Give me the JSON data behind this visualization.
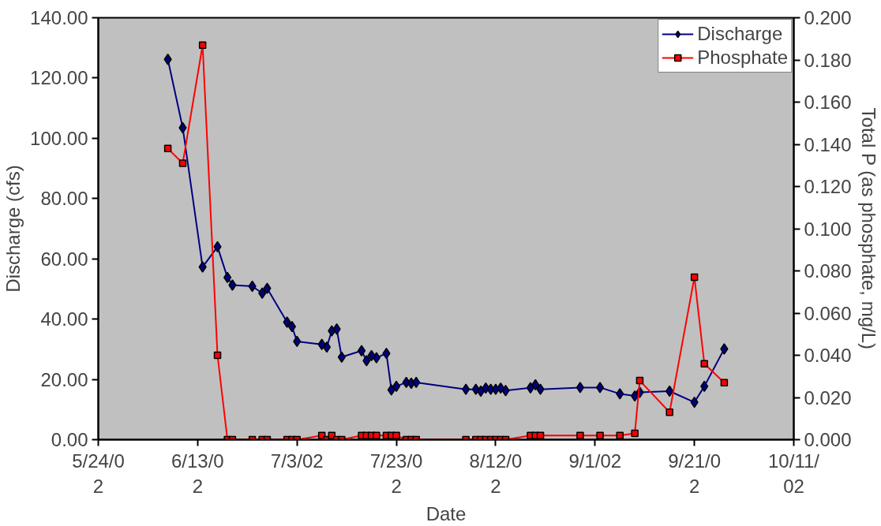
{
  "chart_data": {
    "type": "line",
    "xlabel": "Date",
    "ylabel": "Discharge (cfs)",
    "y2label": "Total P (as phosphate, mg/L)",
    "xlim": [
      "2002-05-24",
      "2002-10-11"
    ],
    "xticks": [
      {
        "value": "2002-05-24",
        "label": "5/24/02"
      },
      {
        "value": "2002-06-13",
        "label": "6/13/02"
      },
      {
        "value": "2002-07-03",
        "label": "7/3/02"
      },
      {
        "value": "2002-07-23",
        "label": "7/23/02"
      },
      {
        "value": "2002-08-12",
        "label": "8/12/02"
      },
      {
        "value": "2002-09-01",
        "label": "9/1/02"
      },
      {
        "value": "2002-09-21",
        "label": "9/21/02"
      },
      {
        "value": "2002-10-11",
        "label": "10/11/02"
      }
    ],
    "ylim": [
      0,
      140
    ],
    "yticks": [
      {
        "value": 0,
        "label": "0.00"
      },
      {
        "value": 20,
        "label": "20.00"
      },
      {
        "value": 40,
        "label": "40.00"
      },
      {
        "value": 60,
        "label": "60.00"
      },
      {
        "value": 80,
        "label": "80.00"
      },
      {
        "value": 100,
        "label": "100.00"
      },
      {
        "value": 120,
        "label": "120.00"
      },
      {
        "value": 140,
        "label": "140.00"
      }
    ],
    "y2lim": [
      0,
      0.2
    ],
    "y2ticks": [
      {
        "value": 0,
        "label": "0.000"
      },
      {
        "value": 0.02,
        "label": "0.020"
      },
      {
        "value": 0.04,
        "label": "0.040"
      },
      {
        "value": 0.06,
        "label": "0.060"
      },
      {
        "value": 0.08,
        "label": "0.080"
      },
      {
        "value": 0.1,
        "label": "0.100"
      },
      {
        "value": 0.12,
        "label": "0.120"
      },
      {
        "value": 0.14,
        "label": "0.140"
      },
      {
        "value": 0.16,
        "label": "0.160"
      },
      {
        "value": 0.18,
        "label": "0.180"
      },
      {
        "value": 0.2,
        "label": "0.200"
      }
    ],
    "grid": false,
    "legend": "top right",
    "line_style": "solid",
    "series": [
      {
        "name": "Discharge",
        "color": "#000080",
        "marker": "diamond",
        "x": [
          "2002-06-07",
          "2002-06-10",
          "2002-06-14",
          "2002-06-17",
          "2002-06-19",
          "2002-06-20",
          "2002-06-24",
          "2002-06-26",
          "2002-06-27",
          "2002-07-01",
          "2002-07-02",
          "2002-07-03",
          "2002-07-08",
          "2002-07-09",
          "2002-07-10",
          "2002-07-11",
          "2002-07-12",
          "2002-07-16",
          "2002-07-17",
          "2002-07-18",
          "2002-07-19",
          "2002-07-21",
          "2002-07-22",
          "2002-07-23",
          "2002-07-25",
          "2002-07-26",
          "2002-07-27",
          "2002-08-06",
          "2002-08-08",
          "2002-08-09",
          "2002-08-10",
          "2002-08-11",
          "2002-08-12",
          "2002-08-13",
          "2002-08-14",
          "2002-08-19",
          "2002-08-20",
          "2002-08-21",
          "2002-08-29",
          "2002-09-02",
          "2002-09-06",
          "2002-09-09",
          "2002-09-10",
          "2002-09-16",
          "2002-09-21",
          "2002-09-23",
          "2002-09-27"
        ],
        "values": [
          126.2,
          103.5,
          57.3,
          64,
          53.8,
          51.3,
          50.9,
          48.6,
          50.2,
          39,
          37.5,
          32.6,
          31.6,
          30.7,
          36.1,
          36.7,
          27.4,
          29.5,
          26.2,
          27.9,
          27.2,
          28.6,
          16.5,
          17.7,
          19,
          18.7,
          19,
          16.7,
          16.7,
          16.1,
          17.1,
          16.7,
          16.7,
          17.1,
          16.3,
          17.2,
          18.2,
          16.7,
          17.3,
          17.3,
          15.2,
          14.5,
          15.7,
          16.1,
          12.4,
          17.7,
          30.1
        ]
      },
      {
        "name": "Phosphate",
        "color": "#ff0000",
        "marker": "square",
        "axis": "y2",
        "x": [
          "2002-06-07",
          "2002-06-10",
          "2002-06-14",
          "2002-06-17",
          "2002-06-19",
          "2002-06-20",
          "2002-06-24",
          "2002-06-26",
          "2002-06-27",
          "2002-07-01",
          "2002-07-02",
          "2002-07-03",
          "2002-07-08",
          "2002-07-09",
          "2002-07-10",
          "2002-07-11",
          "2002-07-12",
          "2002-07-16",
          "2002-07-17",
          "2002-07-18",
          "2002-07-19",
          "2002-07-21",
          "2002-07-22",
          "2002-07-23",
          "2002-07-25",
          "2002-07-26",
          "2002-07-27",
          "2002-08-06",
          "2002-08-08",
          "2002-08-09",
          "2002-08-10",
          "2002-08-11",
          "2002-08-12",
          "2002-08-13",
          "2002-08-14",
          "2002-08-19",
          "2002-08-20",
          "2002-08-21",
          "2002-08-29",
          "2002-09-02",
          "2002-09-06",
          "2002-09-09",
          "2002-09-10",
          "2002-09-16",
          "2002-09-21",
          "2002-09-23",
          "2002-09-27"
        ],
        "values": [
          0.138,
          0.131,
          0.187,
          0.04,
          0,
          0,
          0,
          0,
          0,
          0,
          0,
          0,
          0.002,
          0,
          0.002,
          0,
          0,
          0.002,
          0.002,
          0.002,
          0.002,
          0.002,
          0.002,
          0.002,
          0,
          0,
          0,
          0,
          0,
          0,
          0,
          0,
          0,
          0,
          0,
          0.002,
          0.002,
          0.002,
          0.002,
          0.002,
          0.002,
          0.003,
          0.028,
          0.013,
          0.077,
          0.036,
          0.027
        ]
      }
    ]
  }
}
